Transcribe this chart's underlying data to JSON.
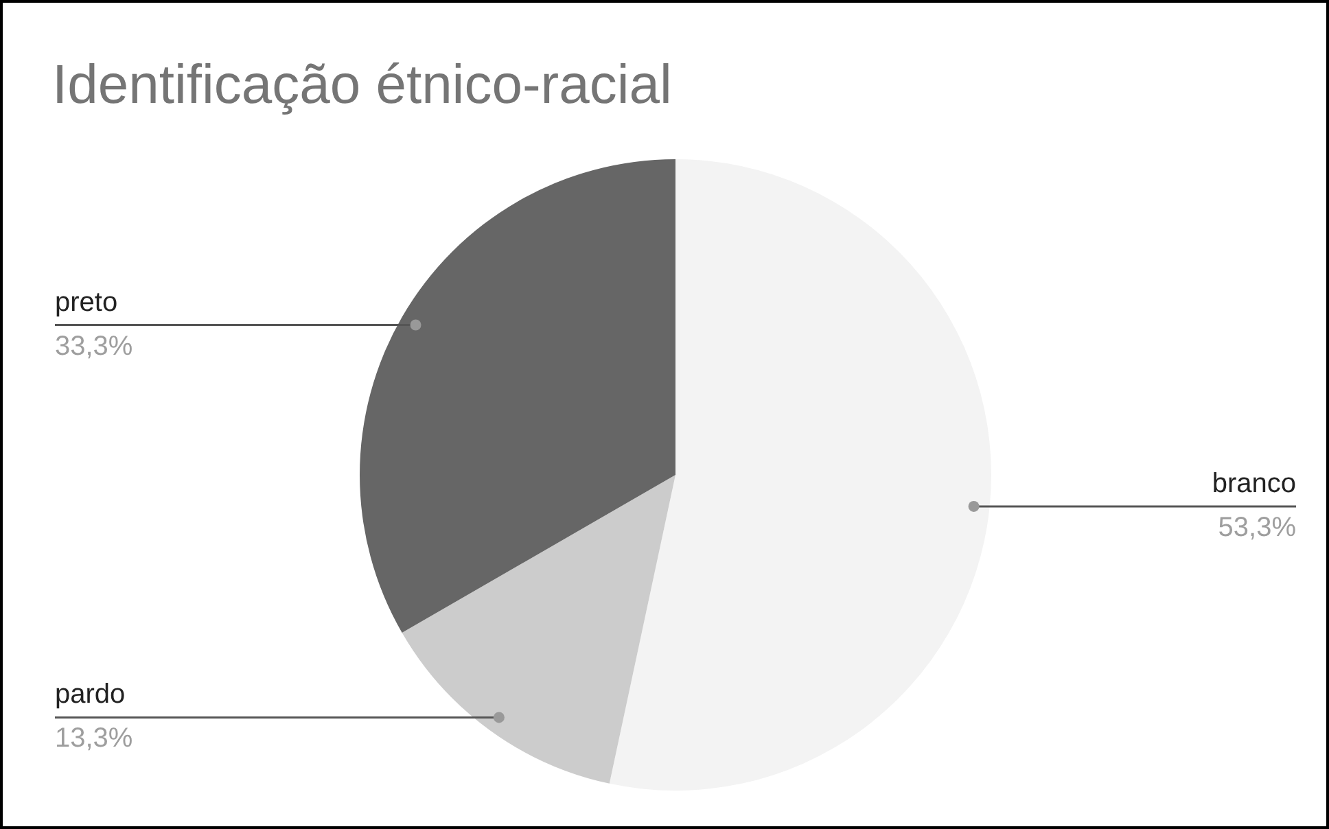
{
  "chart_data": {
    "type": "pie",
    "title": "Identificação étnico-racial",
    "categories": [
      "branco",
      "pardo",
      "preto"
    ],
    "values": [
      53.3,
      13.3,
      33.3
    ],
    "value_labels": [
      "53,3%",
      "13,3%",
      "33,3%"
    ],
    "colors": [
      "#f3f3f3",
      "#cccccc",
      "#666666"
    ],
    "legend": false
  }
}
